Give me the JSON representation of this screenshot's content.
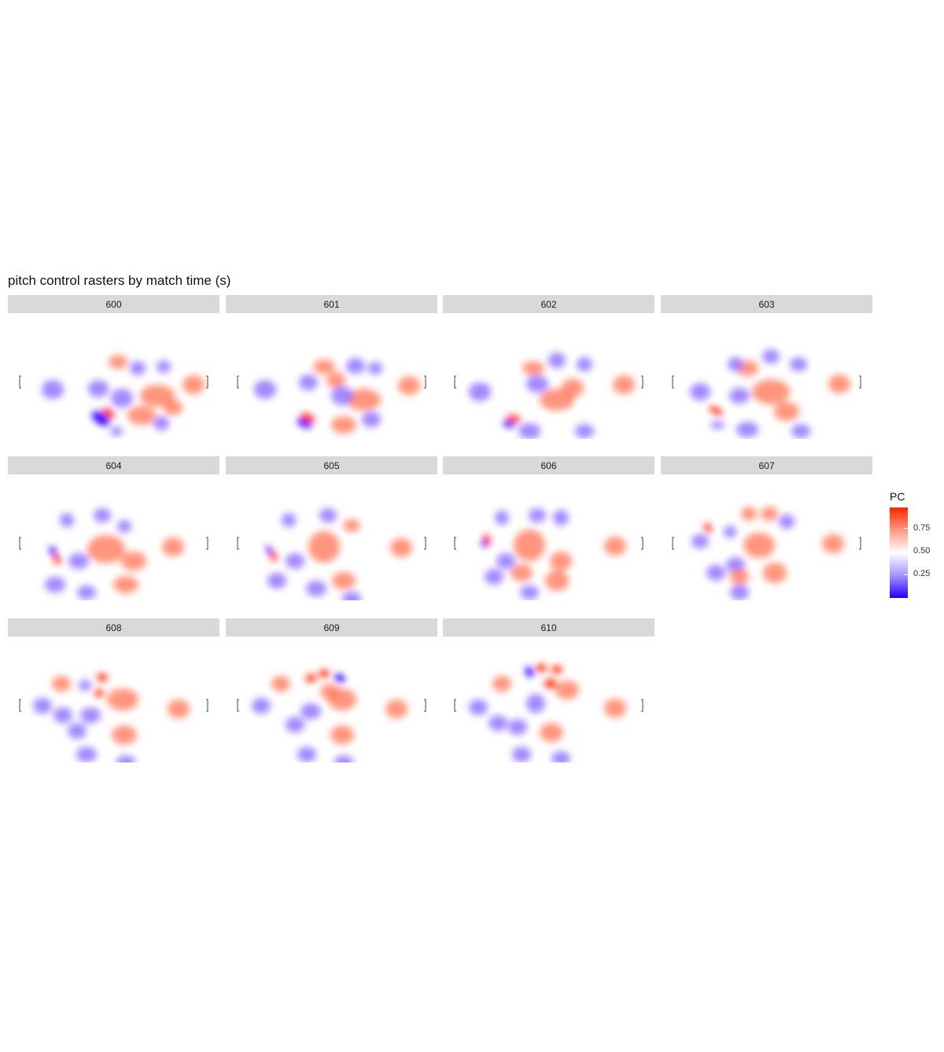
{
  "chart_data": {
    "type": "heatmap",
    "title": "pitch control rasters by match time (s)",
    "facets": [
      "600",
      "601",
      "602",
      "603",
      "604",
      "605",
      "606",
      "607",
      "608",
      "609",
      "610"
    ],
    "fill_scale": {
      "name": "PC",
      "low_color": "#2200ff",
      "mid_color": "#ffffff",
      "high_color": "#ff2200",
      "midpoint": 0.5,
      "breaks": [
        "0.25",
        "0.50",
        "0.75"
      ],
      "range": [
        0,
        1
      ]
    },
    "grid": false,
    "legend_position": "right"
  }
}
